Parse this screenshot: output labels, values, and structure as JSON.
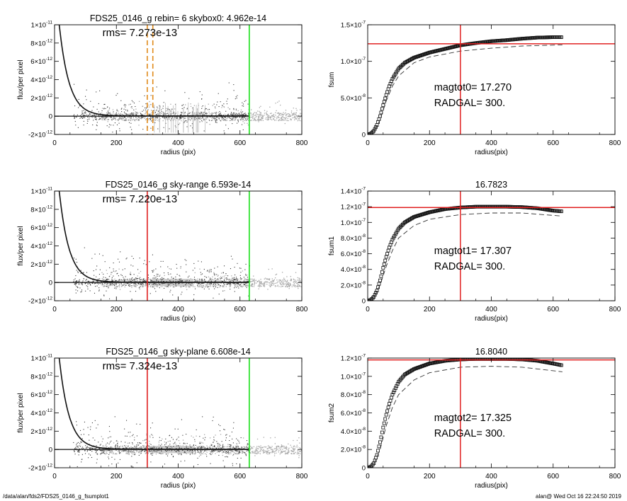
{
  "footer": {
    "path": "/data/alan/fds2/FDS25_0146_g_fsumplot1",
    "stamp": "alan@  Wed Oct 16 22:24:50 2019"
  },
  "colors": {
    "red": "#e02020",
    "green": "#19e019",
    "orange": "#e08a1a",
    "grey": "#9c9c9c"
  },
  "chart_data": [
    {
      "type": "scatter",
      "title": "FDS25_0146_g rebin= 6    skybox0:  4.962e-14",
      "annotations": [
        "rms= 7.273e-13"
      ],
      "xlabel": "radius (pix)",
      "ylabel": "flux/per pixel",
      "xlim": [
        0,
        800
      ],
      "ylim": [
        -2e-12,
        1e-11
      ],
      "xticks": [
        "0",
        "200",
        "400",
        "600",
        "800"
      ],
      "yticks": [
        {
          "v": 1e-11,
          "b": "1×10",
          "e": "-11"
        },
        {
          "v": 8e-12,
          "b": "8×10",
          "e": "-12"
        },
        {
          "v": 6e-12,
          "b": "6×10",
          "e": "-12"
        },
        {
          "v": 4e-12,
          "b": "4×10",
          "e": "-12"
        },
        {
          "v": 2e-12,
          "b": "2×10",
          "e": "-12"
        },
        {
          "v": 0,
          "b": "0",
          "e": ""
        },
        {
          "v": -2e-12,
          "b": "-2×10",
          "e": "-12"
        }
      ],
      "vlines": [
        {
          "x": 300,
          "color": "orange",
          "dash": true
        },
        {
          "x": 318,
          "color": "orange",
          "dash": true
        },
        {
          "x": 630,
          "color": "green",
          "dash": false
        }
      ]
    },
    {
      "type": "line",
      "title": "",
      "annotations": [
        "magtot0=  17.270",
        "RADGAL=    300."
      ],
      "xlabel": "radius(pix)",
      "ylabel": "fsum",
      "xlim": [
        0,
        800
      ],
      "ylim": [
        0,
        1.5e-07
      ],
      "xticks": [
        "0",
        "200",
        "400",
        "600",
        "800"
      ],
      "yticks": [
        {
          "v": 0,
          "b": "0",
          "e": ""
        },
        {
          "v": 5e-08,
          "b": "5.0×10",
          "e": "-8"
        },
        {
          "v": 1e-07,
          "b": "1.0×10",
          "e": "-7"
        },
        {
          "v": 1.5e-07,
          "b": "1.5×10",
          "e": "-7"
        }
      ],
      "hline": 1.24e-07,
      "vline": 300,
      "series": [
        {
          "style": "markers",
          "points": [
            [
              0,
              0
            ],
            [
              10,
              1e-09
            ],
            [
              20,
              5e-09
            ],
            [
              30,
              1.3e-08
            ],
            [
              40,
              2.5e-08
            ],
            [
              50,
              4e-08
            ],
            [
              60,
              5.4e-08
            ],
            [
              70,
              6.6e-08
            ],
            [
              80,
              7.6e-08
            ],
            [
              100,
              9e-08
            ],
            [
              120,
              9.8e-08
            ],
            [
              150,
              1.05e-07
            ],
            [
              200,
              1.12e-07
            ],
            [
              250,
              1.17e-07
            ],
            [
              300,
              1.22e-07
            ],
            [
              350,
              1.25e-07
            ],
            [
              400,
              1.275e-07
            ],
            [
              450,
              1.29e-07
            ],
            [
              500,
              1.31e-07
            ],
            [
              550,
              1.325e-07
            ],
            [
              600,
              1.33e-07
            ],
            [
              630,
              1.33e-07
            ]
          ]
        },
        {
          "style": "dashed",
          "points": [
            [
              0,
              0
            ],
            [
              20,
              4e-09
            ],
            [
              40,
              2e-08
            ],
            [
              60,
              4.6e-08
            ],
            [
              80,
              6.6e-08
            ],
            [
              100,
              8e-08
            ],
            [
              150,
              9.8e-08
            ],
            [
              200,
              1.06e-07
            ],
            [
              300,
              1.14e-07
            ],
            [
              400,
              1.18e-07
            ],
            [
              500,
              1.21e-07
            ],
            [
              630,
              1.225e-07
            ]
          ]
        }
      ]
    },
    {
      "type": "scatter",
      "title": "FDS25_0146_g sky-range  6.593e-14",
      "annotations": [
        "rms= 7.220e-13"
      ],
      "xlabel": "radius (pix)",
      "ylabel": "flux/per pixel",
      "xlim": [
        0,
        800
      ],
      "ylim": [
        -2e-12,
        1e-11
      ],
      "xticks": [
        "0",
        "200",
        "400",
        "600",
        "800"
      ],
      "yticks": [
        {
          "v": 1e-11,
          "b": "1×10",
          "e": "-11"
        },
        {
          "v": 8e-12,
          "b": "8×10",
          "e": "-12"
        },
        {
          "v": 6e-12,
          "b": "6×10",
          "e": "-12"
        },
        {
          "v": 4e-12,
          "b": "4×10",
          "e": "-12"
        },
        {
          "v": 2e-12,
          "b": "2×10",
          "e": "-12"
        },
        {
          "v": 0,
          "b": "0",
          "e": ""
        },
        {
          "v": -2e-12,
          "b": "-2×10",
          "e": "-12"
        }
      ],
      "vlines": [
        {
          "x": 300,
          "color": "red",
          "dash": false
        },
        {
          "x": 630,
          "color": "green",
          "dash": false
        }
      ]
    },
    {
      "type": "line",
      "title": "16.7823",
      "annotations": [
        "magtot1=  17.307",
        "RADGAL=    300."
      ],
      "xlabel": "radius(pix)",
      "ylabel": "fsum1",
      "xlim": [
        0,
        800
      ],
      "ylim": [
        0,
        1.4e-07
      ],
      "xticks": [
        "0",
        "200",
        "400",
        "600",
        "800"
      ],
      "yticks": [
        {
          "v": 0,
          "b": "0",
          "e": ""
        },
        {
          "v": 2e-08,
          "b": "2.0×10",
          "e": "-8"
        },
        {
          "v": 4e-08,
          "b": "4.0×10",
          "e": "-8"
        },
        {
          "v": 6e-08,
          "b": "6.0×10",
          "e": "-8"
        },
        {
          "v": 8e-08,
          "b": "8.0×10",
          "e": "-8"
        },
        {
          "v": 1e-07,
          "b": "1.0×10",
          "e": "-7"
        },
        {
          "v": 1.2e-07,
          "b": "1.2×10",
          "e": "-7"
        },
        {
          "v": 1.4e-07,
          "b": "1.4×10",
          "e": "-7"
        }
      ],
      "hline": 1.19e-07,
      "vline": 300,
      "series": [
        {
          "style": "markers",
          "points": [
            [
              0,
              0
            ],
            [
              10,
              1e-09
            ],
            [
              20,
              5e-09
            ],
            [
              30,
              1.3e-08
            ],
            [
              40,
              2.6e-08
            ],
            [
              50,
              4.2e-08
            ],
            [
              60,
              5.6e-08
            ],
            [
              70,
              6.8e-08
            ],
            [
              80,
              7.8e-08
            ],
            [
              100,
              9.2e-08
            ],
            [
              120,
              1e-07
            ],
            [
              150,
              1.07e-07
            ],
            [
              200,
              1.13e-07
            ],
            [
              250,
              1.17e-07
            ],
            [
              300,
              1.19e-07
            ],
            [
              350,
              1.2e-07
            ],
            [
              400,
              1.2e-07
            ],
            [
              450,
              1.2e-07
            ],
            [
              500,
              1.195e-07
            ],
            [
              550,
              1.18e-07
            ],
            [
              600,
              1.15e-07
            ],
            [
              630,
              1.14e-07
            ]
          ]
        },
        {
          "style": "dashed",
          "points": [
            [
              0,
              0
            ],
            [
              20,
              4e-09
            ],
            [
              40,
              2e-08
            ],
            [
              60,
              4.4e-08
            ],
            [
              80,
              6.4e-08
            ],
            [
              100,
              8e-08
            ],
            [
              150,
              9.6e-08
            ],
            [
              200,
              1.04e-07
            ],
            [
              300,
              1.1e-07
            ],
            [
              400,
              1.12e-07
            ],
            [
              500,
              1.12e-07
            ],
            [
              630,
              1.08e-07
            ]
          ]
        }
      ]
    },
    {
      "type": "scatter",
      "title": "FDS25_0146_g sky-plane  6.608e-14",
      "annotations": [
        "rms= 7.324e-13"
      ],
      "xlabel": "radius (pix)",
      "ylabel": "flux/per pixel",
      "xlim": [
        0,
        800
      ],
      "ylim": [
        -2e-12,
        1e-11
      ],
      "xticks": [
        "0",
        "200",
        "400",
        "600",
        "800"
      ],
      "yticks": [
        {
          "v": 1e-11,
          "b": "1×10",
          "e": "-11"
        },
        {
          "v": 8e-12,
          "b": "8×10",
          "e": "-12"
        },
        {
          "v": 6e-12,
          "b": "6×10",
          "e": "-12"
        },
        {
          "v": 4e-12,
          "b": "4×10",
          "e": "-12"
        },
        {
          "v": 2e-12,
          "b": "2×10",
          "e": "-12"
        },
        {
          "v": 0,
          "b": "0",
          "e": ""
        },
        {
          "v": -2e-12,
          "b": "-2×10",
          "e": "-12"
        }
      ],
      "vlines": [
        {
          "x": 300,
          "color": "red",
          "dash": false
        },
        {
          "x": 630,
          "color": "green",
          "dash": false
        }
      ]
    },
    {
      "type": "line",
      "title": "16.8040",
      "annotations": [
        "magtot2=  17.325",
        "RADGAL=    300."
      ],
      "xlabel": "radius(pix)",
      "ylabel": "fsum2",
      "xlim": [
        0,
        800
      ],
      "ylim": [
        0,
        1.2e-07
      ],
      "xticks": [
        "0",
        "200",
        "400",
        "600",
        "800"
      ],
      "yticks": [
        {
          "v": 0,
          "b": "0",
          "e": ""
        },
        {
          "v": 2e-08,
          "b": "2.0×10",
          "e": "-8"
        },
        {
          "v": 4e-08,
          "b": "4.0×10",
          "e": "-8"
        },
        {
          "v": 6e-08,
          "b": "6.0×10",
          "e": "-8"
        },
        {
          "v": 8e-08,
          "b": "8.0×10",
          "e": "-8"
        },
        {
          "v": 1e-07,
          "b": "1.0×10",
          "e": "-7"
        },
        {
          "v": 1.2e-07,
          "b": "1.2×10",
          "e": "-7"
        }
      ],
      "hline": 1.18e-07,
      "vline": 300,
      "series": [
        {
          "style": "markers",
          "points": [
            [
              0,
              0
            ],
            [
              10,
              1e-09
            ],
            [
              20,
              5e-09
            ],
            [
              30,
              1.4e-08
            ],
            [
              40,
              2.8e-08
            ],
            [
              50,
              4.4e-08
            ],
            [
              60,
              5.8e-08
            ],
            [
              70,
              7e-08
            ],
            [
              80,
              8e-08
            ],
            [
              100,
              9.4e-08
            ],
            [
              120,
              1.02e-07
            ],
            [
              150,
              1.08e-07
            ],
            [
              200,
              1.14e-07
            ],
            [
              250,
              1.17e-07
            ],
            [
              300,
              1.185e-07
            ],
            [
              350,
              1.19e-07
            ],
            [
              400,
              1.19e-07
            ],
            [
              450,
              1.19e-07
            ],
            [
              500,
              1.185e-07
            ],
            [
              550,
              1.17e-07
            ],
            [
              600,
              1.14e-07
            ],
            [
              630,
              1.12e-07
            ]
          ]
        },
        {
          "style": "dashed",
          "points": [
            [
              0,
              0
            ],
            [
              20,
              4e-09
            ],
            [
              40,
              2e-08
            ],
            [
              60,
              4.6e-08
            ],
            [
              80,
              6.6e-08
            ],
            [
              100,
              8e-08
            ],
            [
              150,
              9.6e-08
            ],
            [
              200,
              1.04e-07
            ],
            [
              300,
              1.1e-07
            ],
            [
              400,
              1.11e-07
            ],
            [
              500,
              1.1e-07
            ],
            [
              630,
              1.05e-07
            ]
          ]
        }
      ]
    }
  ]
}
